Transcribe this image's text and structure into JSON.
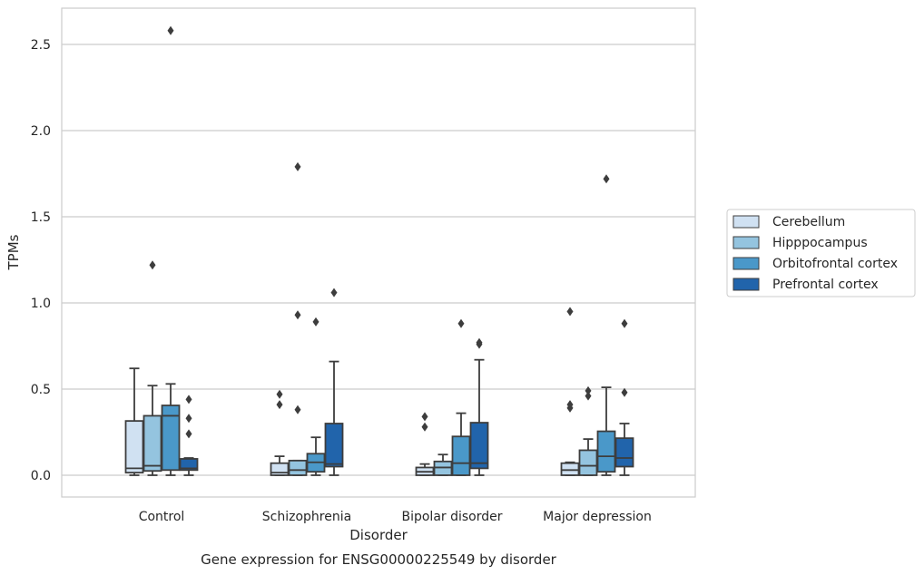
{
  "chart_data": {
    "type": "boxplot",
    "title": "",
    "caption": "Gene expression for ENSG00000225549 by disorder",
    "xlabel": "Disorder",
    "ylabel": "TPMs",
    "ylim": [
      -0.13,
      2.72
    ],
    "yticks": [
      0.0,
      0.5,
      1.0,
      1.5,
      2.0,
      2.5
    ],
    "ytick_labels": [
      "0.0",
      "0.5",
      "1.0",
      "1.5",
      "2.0",
      "2.5"
    ],
    "categories": [
      "Control",
      "Schizophrenia",
      "Bipolar disorder",
      "Major depression"
    ],
    "grid": "horizontal",
    "legend_position": "outside-right",
    "series": [
      {
        "name": "Cerebellum",
        "color": "#d0e1f2",
        "boxes": [
          {
            "whislo": 0.0,
            "q1": 0.015,
            "med": 0.04,
            "q3": 0.315,
            "whishi": 0.62,
            "fliers": []
          },
          {
            "whislo": 0.0,
            "q1": 0.0,
            "med": 0.015,
            "q3": 0.07,
            "whishi": 0.11,
            "fliers": [
              0.41,
              0.47
            ]
          },
          {
            "whislo": 0.0,
            "q1": 0.0,
            "med": 0.02,
            "q3": 0.045,
            "whishi": 0.065,
            "fliers": [
              0.28,
              0.34
            ]
          },
          {
            "whislo": 0.0,
            "q1": 0.0,
            "med": 0.03,
            "q3": 0.07,
            "whishi": 0.075,
            "fliers": [
              0.39,
              0.41,
              0.95
            ]
          }
        ]
      },
      {
        "name": "Hipppocampus",
        "color": "#94c4df",
        "boxes": [
          {
            "whislo": 0.0,
            "q1": 0.025,
            "med": 0.055,
            "q3": 0.345,
            "whishi": 0.52,
            "fliers": [
              1.22
            ]
          },
          {
            "whislo": 0.0,
            "q1": 0.0,
            "med": 0.03,
            "q3": 0.085,
            "whishi": 0.085,
            "fliers": [
              0.38,
              0.93,
              1.79
            ]
          },
          {
            "whislo": 0.0,
            "q1": 0.0,
            "med": 0.045,
            "q3": 0.08,
            "whishi": 0.12,
            "fliers": []
          },
          {
            "whislo": 0.0,
            "q1": 0.0,
            "med": 0.055,
            "q3": 0.145,
            "whishi": 0.21,
            "fliers": [
              0.46,
              0.49
            ]
          }
        ]
      },
      {
        "name": "Orbitofrontal cortex",
        "color": "#4a98c9",
        "boxes": [
          {
            "whislo": 0.0,
            "q1": 0.03,
            "med": 0.345,
            "q3": 0.405,
            "whishi": 0.53,
            "fliers": [
              2.58
            ]
          },
          {
            "whislo": 0.0,
            "q1": 0.02,
            "med": 0.075,
            "q3": 0.125,
            "whishi": 0.22,
            "fliers": [
              0.89
            ]
          },
          {
            "whislo": 0.0,
            "q1": 0.0,
            "med": 0.07,
            "q3": 0.225,
            "whishi": 0.36,
            "fliers": [
              0.88
            ]
          },
          {
            "whislo": 0.0,
            "q1": 0.02,
            "med": 0.11,
            "q3": 0.255,
            "whishi": 0.51,
            "fliers": [
              1.72
            ]
          }
        ]
      },
      {
        "name": "Prefrontal cortex",
        "color": "#2164ab",
        "boxes": [
          {
            "whislo": 0.0,
            "q1": 0.03,
            "med": 0.04,
            "q3": 0.095,
            "whishi": 0.1,
            "fliers": [
              0.24,
              0.33,
              0.44
            ]
          },
          {
            "whislo": 0.0,
            "q1": 0.05,
            "med": 0.065,
            "q3": 0.3,
            "whishi": 0.66,
            "fliers": [
              1.06
            ]
          },
          {
            "whislo": 0.0,
            "q1": 0.04,
            "med": 0.07,
            "q3": 0.305,
            "whishi": 0.67,
            "fliers": [
              0.76,
              0.77
            ]
          },
          {
            "whislo": 0.0,
            "q1": 0.05,
            "med": 0.1,
            "q3": 0.215,
            "whishi": 0.3,
            "fliers": [
              0.48,
              0.88
            ]
          }
        ]
      }
    ]
  }
}
